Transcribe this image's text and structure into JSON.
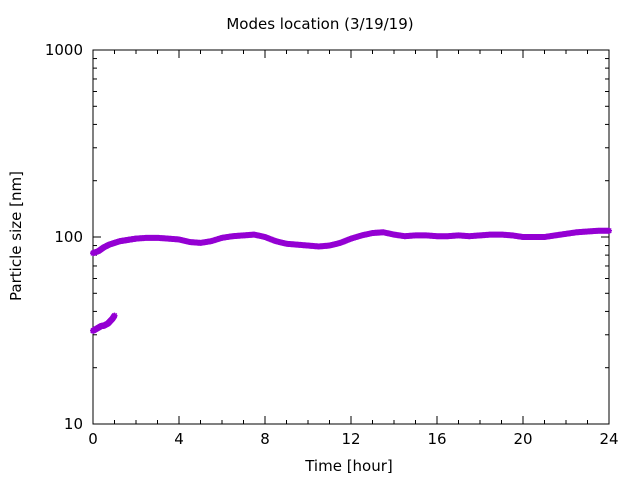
{
  "chart_data": {
    "type": "scatter",
    "title": "Modes location (3/19/19)",
    "xlabel": "Time [hour]",
    "ylabel": "Particle size [nm]",
    "xlim": [
      0,
      24
    ],
    "ylim": [
      10,
      1000
    ],
    "yscale": "log",
    "grid": false,
    "legend": "none",
    "x_ticks": [
      0,
      4,
      8,
      12,
      16,
      20,
      24
    ],
    "x_tick_labels": [
      "0",
      "4",
      "8",
      "12",
      "16",
      "20",
      "24"
    ],
    "y_ticks": [
      10,
      100,
      1000
    ],
    "y_tick_labels": [
      "10",
      "100",
      "1000"
    ],
    "marker_color": "#9400d3",
    "series": [
      {
        "x": [
          0,
          0.25,
          0.5,
          0.75,
          1,
          1.25,
          1.5,
          1.75,
          2,
          2.5,
          3,
          3.5,
          4,
          4.5,
          5,
          5.5,
          6,
          6.5,
          7,
          7.5,
          8,
          8.5,
          9,
          9.5,
          10,
          10.5,
          11,
          11.5,
          12,
          12.5,
          13,
          13.5,
          14,
          14.5,
          15,
          15.5,
          16,
          16.5,
          17,
          17.5,
          18,
          18.5,
          19,
          19.5,
          20,
          20.5,
          21,
          21.5,
          22,
          22.5,
          23,
          23.5,
          24
        ],
        "y": [
          82,
          84,
          88,
          91,
          93,
          95,
          96,
          97,
          98,
          99,
          99,
          98,
          97,
          94,
          93,
          95,
          99,
          101,
          102,
          103,
          100,
          95,
          92,
          91,
          90,
          89,
          90,
          93,
          98,
          102,
          105,
          106,
          103,
          101,
          102,
          102,
          101,
          101,
          102,
          101,
          102,
          103,
          103,
          102,
          100,
          100,
          100,
          102,
          104,
          106,
          107,
          108,
          108
        ]
      },
      {
        "x": [
          0,
          0.1,
          0.2,
          0.3,
          0.4,
          0.5,
          0.6,
          0.7,
          0.8,
          0.9,
          1.0
        ],
        "y": [
          31.5,
          32,
          32.5,
          33,
          33.5,
          33.5,
          34,
          34.5,
          35.5,
          36.5,
          38
        ]
      }
    ]
  }
}
